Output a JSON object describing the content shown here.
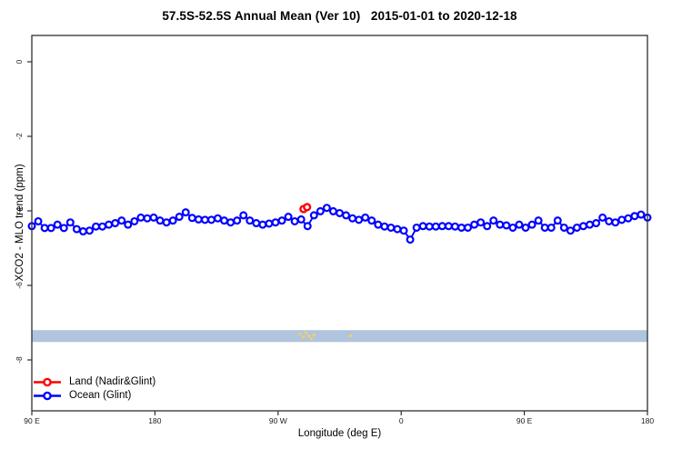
{
  "title": "57.5S-52.5S Annual Mean (Ver 10)   2015-01-01 to 2020-12-18",
  "axes": {
    "x": {
      "label": "Longitude (deg E)",
      "tick_labels": [
        "90 E",
        "180",
        "90 W",
        "0",
        "90 E",
        "180"
      ],
      "tick_positions_deg": [
        90,
        180,
        270,
        360,
        450,
        540
      ]
    },
    "y": {
      "label": "XCO2 - MLO trend (ppm)",
      "tick_labels": [
        "0",
        "-2",
        "-4",
        "-6",
        "-8"
      ],
      "tick_values": [
        0,
        -2,
        -4,
        -6,
        -8
      ]
    }
  },
  "legend": {
    "entries": [
      {
        "label": "Land (Nadir&Glint)",
        "color": "#FF0000"
      },
      {
        "label": "Ocean (Glint)",
        "color": "#0000FF"
      }
    ]
  },
  "chart_data": {
    "type": "line",
    "title": "57.5S-52.5S Annual Mean (Ver 10)   2015-01-01 to 2020-12-18",
    "xlabel": "Longitude (deg E)",
    "ylabel": "XCO2 - MLO trend (ppm)",
    "axis_note": "x axis spans 450 degrees eastward starting at 90E (90E,180,90W,0,90E,180); grid off; legend bottom-left without box",
    "xlim_axis_deg": [
      90,
      540
    ],
    "ylim": [
      -9.4,
      0.71
    ],
    "band": {
      "y_from": -7.2,
      "y_to": -7.52,
      "color": "#B0C4DE",
      "note": "light blue horizontal band across full width"
    },
    "series": [
      {
        "name": "Land (Nadir&Glint)",
        "color": "#FF0000",
        "marker": "open-circle",
        "points": [
          {
            "x_deg": 288.6,
            "y": -3.95
          },
          {
            "x_deg": 291.2,
            "y": -3.9
          }
        ]
      },
      {
        "name": "Ocean (Glint)",
        "color": "#0000FF",
        "marker": "open-circle",
        "x_start_deg": 90,
        "x_step_deg": 4.6875,
        "values": [
          -4.41,
          -4.28,
          -4.46,
          -4.46,
          -4.37,
          -4.46,
          -4.31,
          -4.49,
          -4.55,
          -4.53,
          -4.42,
          -4.42,
          -4.37,
          -4.33,
          -4.26,
          -4.37,
          -4.28,
          -4.18,
          -4.2,
          -4.18,
          -4.26,
          -4.31,
          -4.26,
          -4.16,
          -4.04,
          -4.19,
          -4.23,
          -4.24,
          -4.24,
          -4.2,
          -4.26,
          -4.31,
          -4.26,
          -4.12,
          -4.26,
          -4.33,
          -4.37,
          -4.34,
          -4.31,
          -4.26,
          -4.16,
          -4.28,
          -4.23,
          -4.41,
          -4.12,
          -4.01,
          -3.92,
          -4.01,
          -4.06,
          -4.12,
          -4.2,
          -4.24,
          -4.18,
          -4.26,
          -4.37,
          -4.42,
          -4.45,
          -4.49,
          -4.53,
          -4.77,
          -4.45,
          -4.41,
          -4.42,
          -4.42,
          -4.41,
          -4.41,
          -4.42,
          -4.45,
          -4.45,
          -4.37,
          -4.31,
          -4.41,
          -4.26,
          -4.37,
          -4.39,
          -4.45,
          -4.37,
          -4.45,
          -4.37,
          -4.26,
          -4.45,
          -4.45,
          -4.26,
          -4.45,
          -4.53,
          -4.45,
          -4.41,
          -4.37,
          -4.33,
          -4.18,
          -4.28,
          -4.31,
          -4.24,
          -4.2,
          -4.14,
          -4.1,
          -4.18
        ]
      }
    ],
    "artifacts": {
      "color": "#F2CE68",
      "note": "faint small yellow dots inside the blue band",
      "points": [
        {
          "x_deg": 286.0,
          "y": -7.3
        },
        {
          "x_deg": 288.5,
          "y": -7.38
        },
        {
          "x_deg": 290.5,
          "y": -7.27
        },
        {
          "x_deg": 292.5,
          "y": -7.36
        },
        {
          "x_deg": 294.5,
          "y": -7.43
        },
        {
          "x_deg": 296.2,
          "y": -7.33
        },
        {
          "x_deg": 323.0,
          "y": -7.35
        }
      ]
    }
  }
}
